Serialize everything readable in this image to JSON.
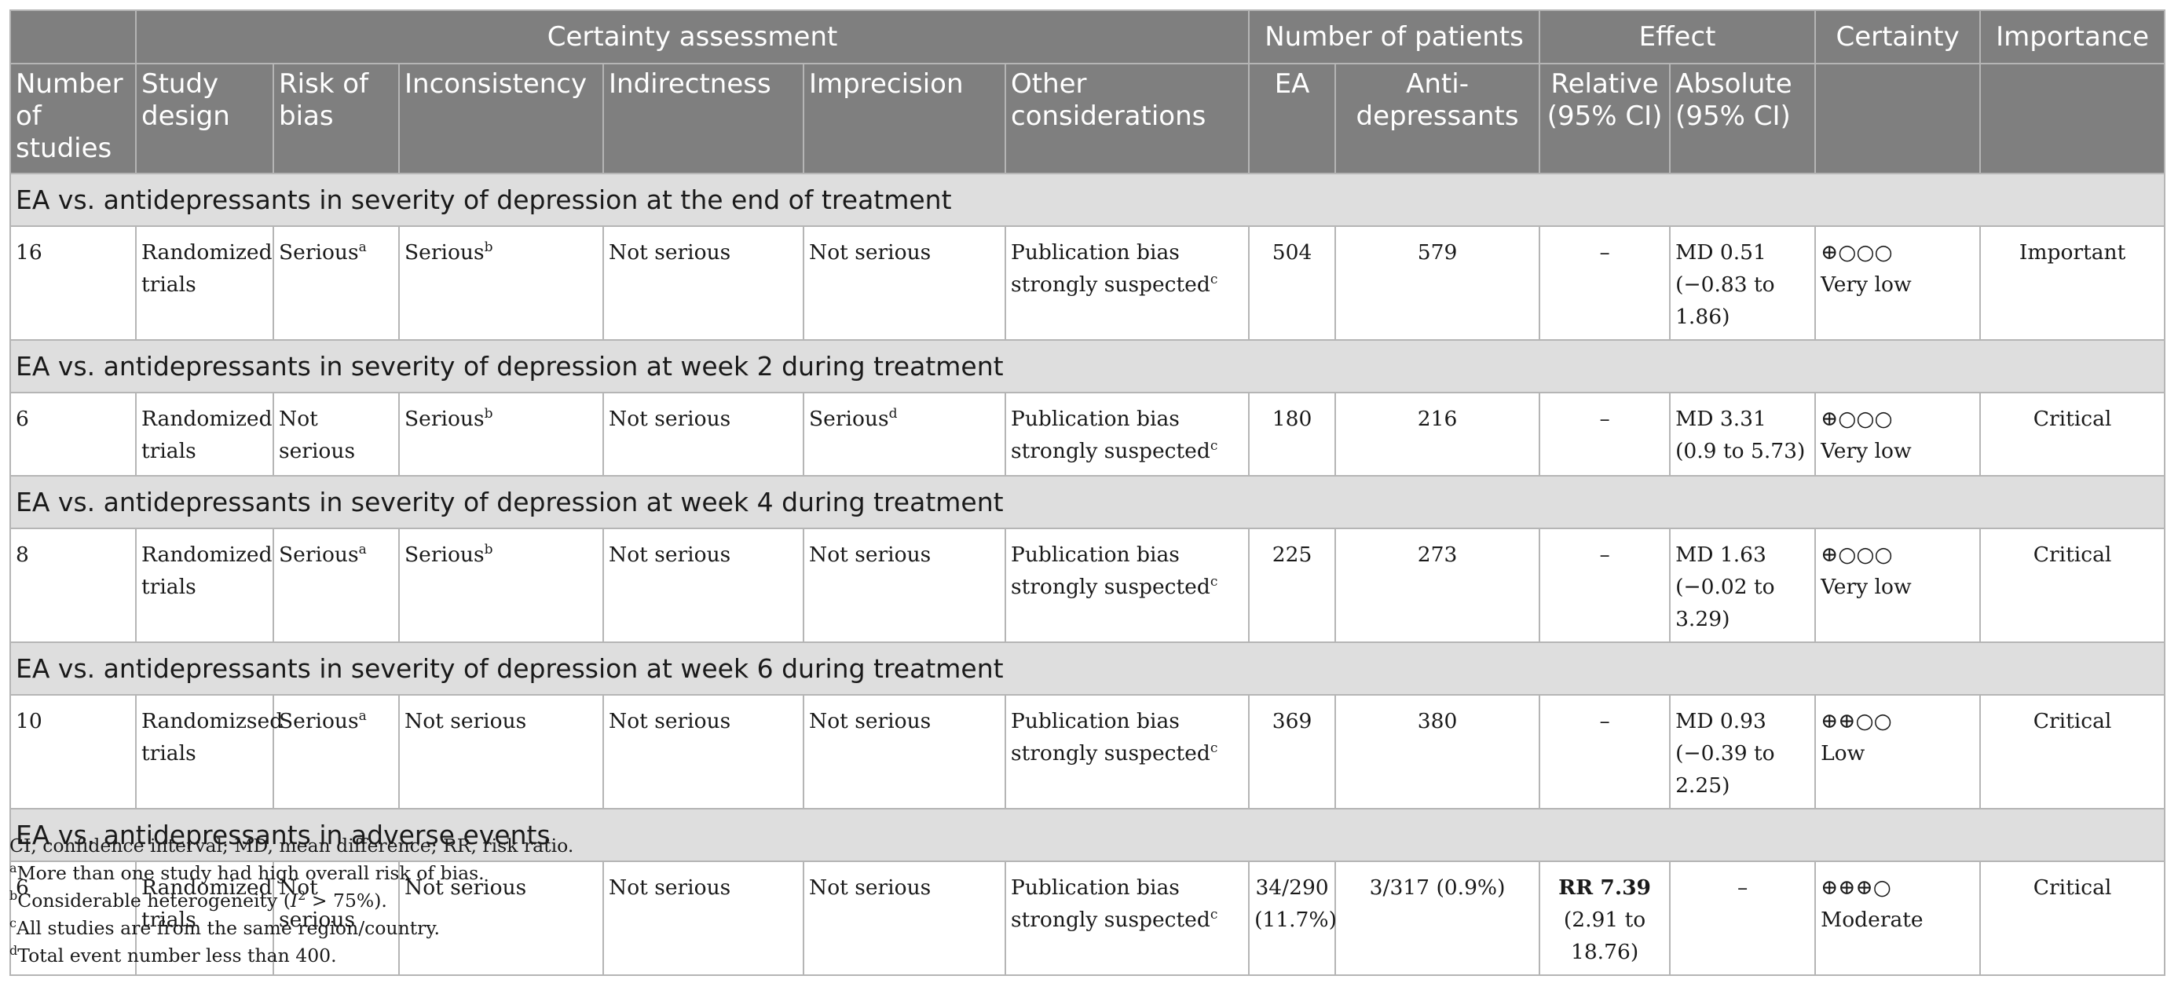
{
  "groups": {
    "certainty_assessment": "Certainty assessment",
    "number_of_patients": "Number of patients",
    "effect": "Effect",
    "certainty": "Certainty",
    "importance": "Importance"
  },
  "columns": {
    "n_studies": "Number of studies",
    "design": "Study design",
    "rob": "Risk of bias",
    "inconsistency": "Inconsistency",
    "indirectness": "Indirectness",
    "imprecision": "Imprecision",
    "other": "Other considerations",
    "ea": "EA",
    "anti": "Anti-depressants",
    "relative": "Relative (95% CI)",
    "absolute": "Absolute (95% CI)"
  },
  "sections": [
    {
      "title": "EA vs. antidepressants in severity of depression at the end of treatment",
      "row": {
        "n": "16",
        "design": "Randomized trials",
        "rob": "Serious",
        "rob_sup": "a",
        "inconsistency": "Serious",
        "inconsistency_sup": "b",
        "indirectness": "Not serious",
        "imprecision": "Not serious",
        "imprecision_sup": "",
        "other": "Publication bias strongly suspected",
        "other_sup": "c",
        "ea": "504",
        "anti": "579",
        "relative": "–",
        "relative_ci": "",
        "absolute": "MD 0.51",
        "absolute_ci": "(−0.83 to 1.86)",
        "certainty_symbols": "⊕○○○",
        "certainty": "Very low",
        "importance": "Important"
      }
    },
    {
      "title": "EA vs. antidepressants in severity of depression at week 2 during treatment",
      "row": {
        "n": "6",
        "design": "Randomized trials",
        "rob": "Not serious",
        "rob_sup": "",
        "inconsistency": "Serious",
        "inconsistency_sup": "b",
        "indirectness": "Not serious",
        "imprecision": "Serious",
        "imprecision_sup": "d",
        "other": "Publication bias strongly suspected",
        "other_sup": "c",
        "ea": "180",
        "anti": "216",
        "relative": "–",
        "relative_ci": "",
        "absolute": "MD 3.31",
        "absolute_ci": "(0.9 to 5.73)",
        "certainty_symbols": "⊕○○○",
        "certainty": "Very low",
        "importance": "Critical"
      }
    },
    {
      "title": "EA vs. antidepressants in severity of depression at week 4 during treatment",
      "row": {
        "n": "8",
        "design": "Randomized trials",
        "rob": "Serious",
        "rob_sup": "a",
        "inconsistency": "Serious",
        "inconsistency_sup": "b",
        "indirectness": "Not serious",
        "imprecision": "Not serious",
        "imprecision_sup": "",
        "other": "Publication bias strongly suspected",
        "other_sup": "c",
        "ea": "225",
        "anti": "273",
        "relative": "–",
        "relative_ci": "",
        "absolute": "MD 1.63",
        "absolute_ci": "(−0.02 to 3.29)",
        "certainty_symbols": "⊕○○○",
        "certainty": "Very low",
        "importance": "Critical"
      }
    },
    {
      "title": "EA vs. antidepressants in severity of depression at week 6 during treatment",
      "row": {
        "n": "10",
        "design": "Randomizsed trials",
        "rob": "Serious",
        "rob_sup": "a",
        "inconsistency": "Not serious",
        "inconsistency_sup": "",
        "indirectness": "Not serious",
        "imprecision": "Not serious",
        "imprecision_sup": "",
        "other": "Publication bias strongly suspected",
        "other_sup": "c",
        "ea": "369",
        "anti": "380",
        "relative": "–",
        "relative_ci": "",
        "absolute": "MD 0.93",
        "absolute_ci": "(−0.39 to 2.25)",
        "certainty_symbols": "⊕⊕○○",
        "certainty": "Low",
        "importance": "Critical"
      }
    },
    {
      "title": "EA vs. antidepressants in adverse events",
      "row": {
        "n": "6",
        "design": "Randomized trials",
        "rob": "Not serious",
        "rob_sup": "",
        "inconsistency": "Not serious",
        "inconsistency_sup": "",
        "indirectness": "Not serious",
        "imprecision": "Not serious",
        "imprecision_sup": "",
        "other": "Publication bias strongly suspected",
        "other_sup": "c",
        "ea": "34/290 (11.7%)",
        "anti": "3/317 (0.9%)",
        "relative": "RR 7.39",
        "relative_ci": "(2.91 to 18.76)",
        "absolute": "–",
        "absolute_ci": "",
        "certainty_symbols": "⊕⊕⊕○",
        "certainty": "Moderate",
        "importance": "Critical"
      }
    }
  ],
  "footnotes": {
    "abbreviations": "CI, confidence interval; MD, mean difference; RR, risk ratio.",
    "a_mark": "a",
    "a": "More than one study had high overall risk of bias.",
    "b_mark": "b",
    "b_pre": "Considerable heterogeneity (",
    "b_var": "I",
    "b_exp": "2",
    "b_post": " > 75%).",
    "c_mark": "c",
    "c": "All studies are from the same region/country.",
    "d_mark": "d",
    "d": "Total event number less than 400."
  },
  "colors": {
    "header_bg": "#7f7f7f",
    "section_bg": "#dedede",
    "border": "#b5b5b5"
  }
}
